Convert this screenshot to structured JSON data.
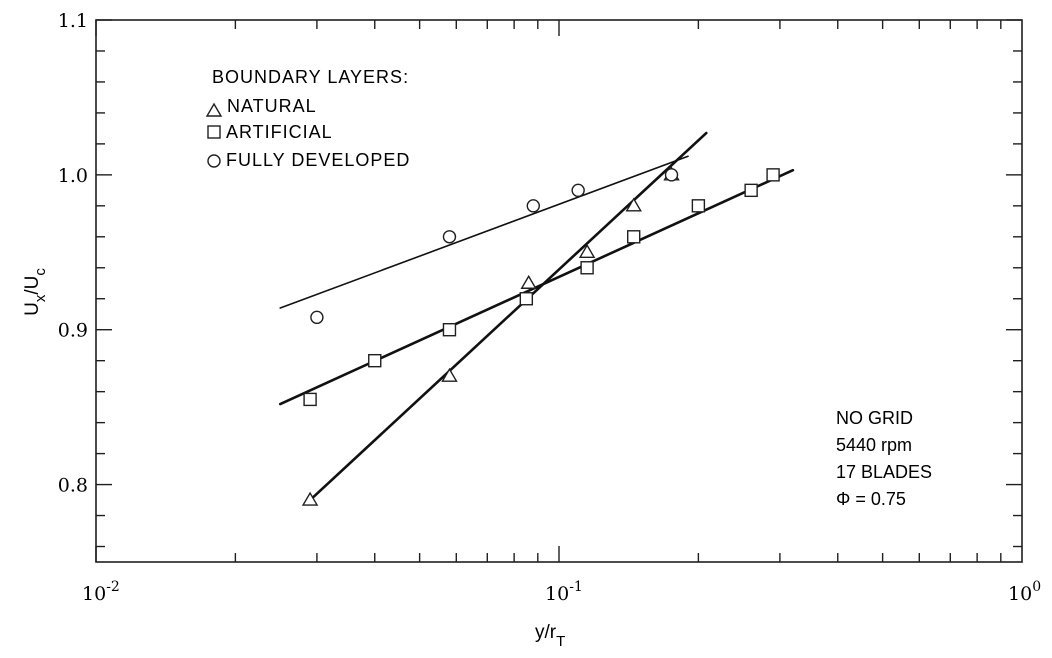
{
  "chart_data": {
    "type": "scatter",
    "title": "",
    "xlabel": "y/r",
    "xlabel_sub": "T",
    "ylabel": "U",
    "ylabel_sub1": "x",
    "ylabel_sep": "/U",
    "ylabel_sub2": "c",
    "xscale": "log",
    "xlim": [
      0.01,
      1
    ],
    "ylim": [
      0.75,
      1.1
    ],
    "grid": false,
    "x_ticks": [
      {
        "value": 0.01,
        "base": "10",
        "exp": "-2"
      },
      {
        "value": 0.1,
        "base": "10",
        "exp": "-1"
      },
      {
        "value": 1,
        "base": "10",
        "exp": "0"
      }
    ],
    "y_ticks": [
      {
        "value": 0.8,
        "label": "0.8"
      },
      {
        "value": 0.9,
        "label": "0.9"
      },
      {
        "value": 1.0,
        "label": "1.0"
      },
      {
        "value": 1.1,
        "label": "1.1"
      }
    ],
    "legend": {
      "title": "BOUNDARY LAYERS:",
      "placement": "top-left"
    },
    "annotation": [
      "NO GRID",
      "5440 rpm",
      "17 BLADES",
      "Φ = 0.75"
    ],
    "series": [
      {
        "name": "NATURAL",
        "marker": "triangle",
        "x": [
          0.029,
          0.058,
          0.086,
          0.115,
          0.145,
          0.175
        ],
        "y": [
          0.79,
          0.87,
          0.93,
          0.95,
          0.98,
          1.0
        ],
        "fit": {
          "x": [
            0.029,
            0.208
          ],
          "y": [
            0.79,
            1.027
          ]
        }
      },
      {
        "name": "ARTIFICIAL",
        "marker": "square",
        "x": [
          0.029,
          0.04,
          0.058,
          0.085,
          0.115,
          0.145,
          0.2,
          0.26,
          0.29
        ],
        "y": [
          0.855,
          0.88,
          0.9,
          0.92,
          0.94,
          0.96,
          0.98,
          0.99,
          1.0
        ],
        "fit": {
          "x": [
            0.025,
            0.32
          ],
          "y": [
            0.852,
            1.003
          ]
        }
      },
      {
        "name": "FULLY DEVELOPED",
        "marker": "circle",
        "x": [
          0.03,
          0.058,
          0.088,
          0.11,
          0.175
        ],
        "y": [
          0.908,
          0.96,
          0.98,
          0.99,
          1.0
        ],
        "fit": {
          "x": [
            0.025,
            0.19
          ],
          "y": [
            0.914,
            1.012
          ]
        }
      }
    ]
  }
}
